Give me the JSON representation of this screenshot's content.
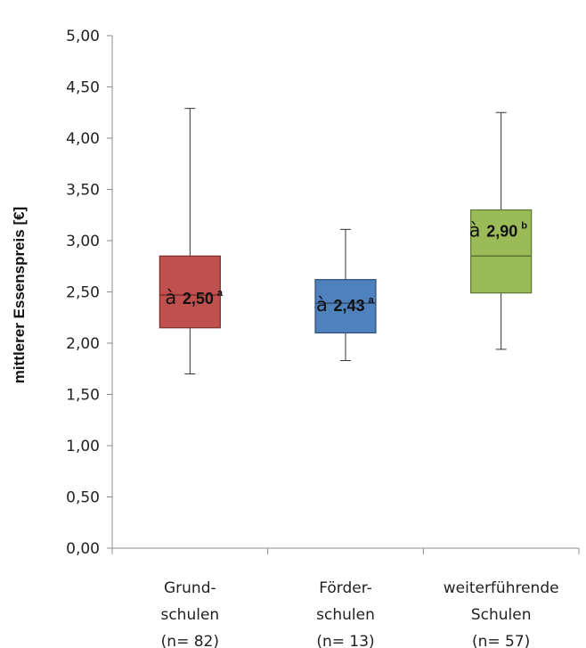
{
  "chart_data": {
    "type": "boxplot",
    "ylabel": "mittlerer Essenspreis [€]",
    "ylim": [
      0,
      5
    ],
    "yticks": [
      "0,00",
      "0,50",
      "1,00",
      "1,50",
      "2,00",
      "2,50",
      "3,00",
      "3,50",
      "4,00",
      "4,50",
      "5,00"
    ],
    "grid": false,
    "categories": [
      {
        "line1": "Grund-",
        "line2": "schulen",
        "line3": "(n= 82)"
      },
      {
        "line1": "Förder-",
        "line2": "schulen",
        "line3": "(n= 13)"
      },
      {
        "line1": "weiterführende",
        "line2": "Schulen",
        "line3": "(n= 57)"
      }
    ],
    "boxes": [
      {
        "min": 1.7,
        "q1": 2.15,
        "median": 2.47,
        "q3": 2.85,
        "max": 4.29,
        "color": "#c0504d",
        "stroke": "#7a2e2c",
        "annotation": {
          "prefix": "à",
          "value": "2,50",
          "sup": "a"
        }
      },
      {
        "min": 1.83,
        "q1": 2.1,
        "median": 2.39,
        "q3": 2.62,
        "max": 3.11,
        "color": "#4f81bd",
        "stroke": "#2c4d74",
        "annotation": {
          "prefix": "à",
          "value": "2,43",
          "sup": "a"
        }
      },
      {
        "min": 1.94,
        "q1": 2.49,
        "median": 2.85,
        "q3": 3.3,
        "max": 4.25,
        "color": "#9bbb59",
        "stroke": "#5d7433",
        "annotation": {
          "prefix": "à",
          "value": "2,90",
          "sup": "b"
        }
      }
    ]
  }
}
